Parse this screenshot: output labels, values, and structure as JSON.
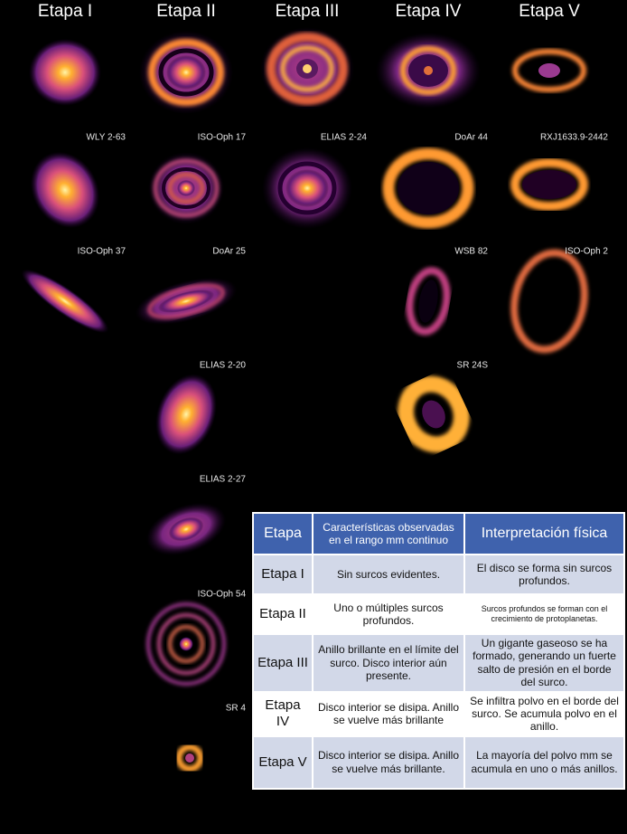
{
  "stages": [
    "Etapa I",
    "Etapa II",
    "Etapa III",
    "Etapa IV",
    "Etapa V"
  ],
  "disks": [
    "WLY 2-63",
    "ISO-Oph 17",
    "ELIAS 2-24",
    "DoAr 44",
    "RXJ1633.9-2442",
    "ISO-Oph 37",
    "DoAr 25",
    "WSB 82",
    "ISO-Oph 2",
    "ELIAS 2-20",
    "SR 24S",
    "ELIAS 2-27",
    "ISO-Oph 54",
    "SR 4"
  ],
  "table": {
    "header": [
      "Etapa",
      "Características observadas en el rango mm continuo",
      "Interpretación física"
    ],
    "rows": [
      [
        "Etapa I",
        "Sin surcos evidentes.",
        "El disco se forma sin surcos profundos."
      ],
      [
        "Etapa II",
        "Uno o múltiples surcos profundos.",
        "Surcos profundos se forman con el crecimiento de protoplanetas."
      ],
      [
        "Etapa III",
        "Anillo brillante en el límite del surco. Disco interior aún presente.",
        "Un gigante gaseoso se ha formado, generando un fuerte salto de presión en el borde del surco."
      ],
      [
        "Etapa IV",
        "Disco interior se disipa. Anillo se vuelve más brillante",
        "Se infiltra polvo en el borde del surco. Se acumula polvo en el anillo."
      ],
      [
        "Etapa V",
        "Disco interior se disipa. Anillo se vuelve más brillante.",
        "La mayoría del polvo mm se acumula en uno o más anillos."
      ]
    ]
  }
}
